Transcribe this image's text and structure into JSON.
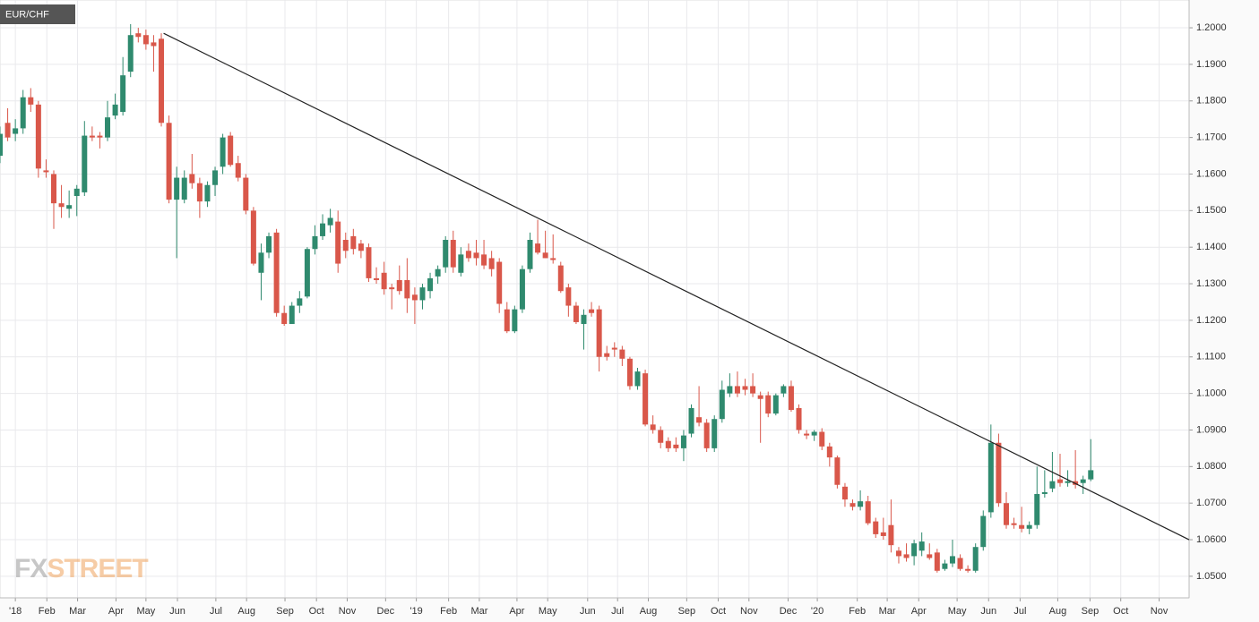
{
  "chart_data": {
    "type": "candlestick",
    "title": "EUR/CHF",
    "watermark": [
      "FX",
      "STREET"
    ],
    "up_color": "#2f8a6e",
    "down_color": "#d9574a",
    "x": [
      -2,
      -1,
      0,
      1,
      2,
      3,
      4,
      5,
      6,
      7,
      8,
      9,
      10,
      11,
      12,
      13,
      14,
      15,
      16,
      17,
      18,
      19,
      20,
      21,
      22,
      23,
      24,
      25,
      26,
      27,
      28,
      29,
      30,
      31,
      32,
      33,
      34,
      35,
      36,
      37,
      38,
      39,
      40,
      41,
      42,
      43,
      44,
      45,
      46,
      47,
      48,
      49,
      50,
      51,
      52,
      53,
      54,
      55,
      56,
      57,
      58,
      59,
      60,
      61,
      62,
      63,
      64,
      65,
      66,
      67,
      68,
      69,
      70,
      71,
      72,
      73,
      74,
      75,
      76,
      77,
      78,
      79,
      80,
      81,
      82,
      83,
      84,
      85,
      86,
      87,
      88,
      89,
      90,
      91,
      92,
      93,
      94,
      95,
      96,
      97,
      98,
      99,
      100,
      101,
      102,
      103,
      104,
      105,
      106,
      107,
      108,
      109,
      110,
      111,
      112,
      113,
      114,
      115,
      116,
      117,
      118,
      119,
      120,
      121,
      122,
      123,
      124,
      125,
      126,
      127,
      128,
      129,
      130,
      131,
      132,
      133,
      134,
      135,
      136,
      137,
      138,
      139,
      140
    ],
    "open": [
      1.165,
      1.174,
      1.171,
      1.1725,
      1.181,
      1.179,
      1.161,
      1.16,
      1.152,
      1.1505,
      1.154,
      1.155,
      1.1705,
      1.1705,
      1.17,
      1.176,
      1.177,
      1.188,
      1.1985,
      1.198,
      1.196,
      1.197,
      1.174,
      1.153,
      1.153,
      1.16,
      1.1575,
      1.1525,
      1.157,
      1.162,
      1.1705,
      1.163,
      1.159,
      1.15,
      1.133,
      1.1385,
      1.144,
      1.122,
      1.119,
      1.124,
      1.1265,
      1.1395,
      1.143,
      1.146,
      1.147,
      1.142,
      1.143,
      1.141,
      1.14,
      1.1315,
      1.133,
      1.129,
      1.131,
      1.131,
      1.127,
      1.1255,
      1.128,
      1.132,
      1.1345,
      1.142,
      1.133,
      1.139,
      1.1385,
      1.138,
      1.137,
      1.136,
      1.123,
      1.117,
      1.123,
      1.134,
      1.141,
      1.1385,
      1.137,
      1.135,
      1.129,
      1.124,
      1.119,
      1.123,
      1.123,
      1.111,
      1.1125,
      1.112,
      1.1095,
      1.102,
      1.1055,
      1.0915,
      1.09,
      1.087,
      1.086,
      1.085,
      1.089,
      1.0935,
      1.092,
      1.085,
      1.093,
      1.1,
      1.102,
      1.102,
      1.102,
      1.0995,
      1.0995,
      1.0945,
      1.1,
      1.102,
      1.096,
      1.089,
      1.0885,
      1.0895,
      1.0855,
      1.0825,
      1.0745,
      1.07,
      1.069,
      1.0705,
      1.065,
      1.062,
      1.064,
      1.057,
      1.056,
      1.0555,
      1.057,
      1.056,
      1.0565,
      1.052,
      1.0535,
      1.055,
      1.052,
      1.0515,
      1.058,
      1.0675,
      1.0865,
      1.07,
      1.0645,
      1.064,
      1.063,
      1.064,
      1.0725,
      1.074,
      1.0765,
      1.0755,
      1.076,
      1.0755,
      1.0765
    ],
    "high": [
      1.173,
      1.178,
      1.175,
      1.183,
      1.1835,
      1.18,
      1.164,
      1.161,
      1.157,
      1.1555,
      1.157,
      1.1745,
      1.173,
      1.1715,
      1.18,
      1.182,
      1.192,
      1.201,
      1.2,
      1.1995,
      1.198,
      1.1985,
      1.176,
      1.162,
      1.161,
      1.1655,
      1.159,
      1.158,
      1.162,
      1.171,
      1.1715,
      1.165,
      1.16,
      1.151,
      1.141,
      1.144,
      1.145,
      1.124,
      1.125,
      1.128,
      1.14,
      1.146,
      1.149,
      1.1505,
      1.15,
      1.144,
      1.145,
      1.142,
      1.141,
      1.1345,
      1.136,
      1.13,
      1.135,
      1.137,
      1.129,
      1.13,
      1.133,
      1.135,
      1.143,
      1.1445,
      1.14,
      1.141,
      1.142,
      1.142,
      1.139,
      1.137,
      1.125,
      1.124,
      1.135,
      1.144,
      1.1475,
      1.1445,
      1.1435,
      1.136,
      1.13,
      1.125,
      1.123,
      1.125,
      1.124,
      1.113,
      1.114,
      1.113,
      1.11,
      1.107,
      1.1065,
      1.094,
      1.091,
      1.088,
      1.088,
      1.09,
      1.097,
      1.102,
      1.093,
      1.094,
      1.1035,
      1.1055,
      1.106,
      1.104,
      1.1055,
      1.1005,
      1.1005,
      1.1,
      1.1025,
      1.1035,
      1.097,
      1.09,
      1.09,
      1.0905,
      1.0865,
      1.083,
      1.0755,
      1.071,
      1.0735,
      1.072,
      1.066,
      1.066,
      1.071,
      1.058,
      1.059,
      1.06,
      1.062,
      1.059,
      1.0575,
      1.0545,
      1.06,
      1.056,
      1.053,
      1.059,
      1.068,
      1.0915,
      1.089,
      1.073,
      1.066,
      1.069,
      1.065,
      1.08,
      1.079,
      1.084,
      1.0835,
      1.079,
      1.0845,
      1.0775,
      1.0875
    ],
    "low": [
      1.163,
      1.169,
      1.169,
      1.171,
      1.177,
      1.159,
      1.159,
      1.145,
      1.148,
      1.148,
      1.1485,
      1.154,
      1.169,
      1.167,
      1.169,
      1.175,
      1.176,
      1.1865,
      1.196,
      1.194,
      1.188,
      1.173,
      1.152,
      1.137,
      1.152,
      1.156,
      1.148,
      1.151,
      1.154,
      1.16,
      1.162,
      1.158,
      1.149,
      1.135,
      1.1255,
      1.137,
      1.121,
      1.1185,
      1.119,
      1.122,
      1.126,
      1.138,
      1.142,
      1.144,
      1.133,
      1.137,
      1.138,
      1.137,
      1.1305,
      1.13,
      1.127,
      1.123,
      1.127,
      1.122,
      1.119,
      1.123,
      1.126,
      1.13,
      1.133,
      1.133,
      1.132,
      1.136,
      1.135,
      1.134,
      1.132,
      1.122,
      1.1165,
      1.1165,
      1.122,
      1.133,
      1.138,
      1.137,
      1.1355,
      1.1275,
      1.121,
      1.119,
      1.112,
      1.121,
      1.106,
      1.109,
      1.11,
      1.1075,
      1.101,
      1.101,
      1.091,
      1.089,
      1.085,
      1.084,
      1.084,
      1.0815,
      1.088,
      1.091,
      1.084,
      1.084,
      1.092,
      1.099,
      1.099,
      1.0995,
      1.099,
      1.0865,
      1.0935,
      1.094,
      1.099,
      1.095,
      1.089,
      1.0875,
      1.087,
      1.0845,
      1.08,
      1.074,
      1.069,
      1.068,
      1.068,
      1.064,
      1.0605,
      1.06,
      1.0565,
      1.0535,
      1.054,
      1.053,
      1.0555,
      1.0545,
      1.051,
      1.0515,
      1.0525,
      1.0515,
      1.051,
      1.051,
      1.057,
      1.066,
      1.069,
      1.063,
      1.063,
      1.062,
      1.0615,
      1.063,
      1.0715,
      1.073,
      1.0745,
      1.0745,
      1.074,
      1.0725,
      1.076
    ],
    "close": [
      1.171,
      1.17,
      1.1725,
      1.181,
      1.179,
      1.1615,
      1.1605,
      1.152,
      1.151,
      1.1515,
      1.156,
      1.1705,
      1.17,
      1.17,
      1.1755,
      1.179,
      1.187,
      1.198,
      1.1975,
      1.1955,
      1.195,
      1.174,
      1.153,
      1.159,
      1.159,
      1.1575,
      1.1525,
      1.157,
      1.161,
      1.17,
      1.1625,
      1.159,
      1.15,
      1.1355,
      1.1385,
      1.143,
      1.122,
      1.119,
      1.124,
      1.126,
      1.1395,
      1.143,
      1.1465,
      1.148,
      1.1355,
      1.139,
      1.1395,
      1.139,
      1.1315,
      1.131,
      1.1285,
      1.1285,
      1.128,
      1.126,
      1.1255,
      1.129,
      1.1315,
      1.134,
      1.142,
      1.1345,
      1.138,
      1.137,
      1.137,
      1.135,
      1.134,
      1.1245,
      1.117,
      1.123,
      1.134,
      1.142,
      1.1385,
      1.137,
      1.1365,
      1.128,
      1.124,
      1.1195,
      1.1215,
      1.122,
      1.11,
      1.11,
      1.112,
      1.1095,
      1.102,
      1.106,
      1.0915,
      1.09,
      1.0865,
      1.085,
      1.085,
      1.0885,
      1.096,
      1.092,
      1.085,
      1.093,
      1.101,
      1.102,
      1.1,
      1.101,
      1.1,
      1.0985,
      1.0945,
      1.0995,
      1.102,
      1.0955,
      1.09,
      1.0885,
      1.0895,
      1.0855,
      1.0825,
      1.075,
      1.071,
      1.069,
      1.0705,
      1.0645,
      1.0615,
      1.061,
      1.0585,
      1.0555,
      1.055,
      1.059,
      1.0595,
      1.055,
      1.0515,
      1.0535,
      1.0555,
      1.052,
      1.0515,
      1.058,
      1.0665,
      1.0865,
      1.07,
      1.064,
      1.064,
      1.063,
      1.064,
      1.0725,
      1.073,
      1.076,
      1.0755,
      1.076,
      1.075,
      1.0765,
      1.079
    ],
    "trendline": {
      "x": [
        19.3,
        152.8
      ],
      "y": [
        1.1985,
        1.06
      ],
      "color": "#222222"
    },
    "xlim": [
      -2.0,
      152.8
    ],
    "xticks": [
      {
        "value": 0,
        "label": "'18"
      },
      {
        "value": 4.1,
        "label": "Feb"
      },
      {
        "value": 8.1,
        "label": "Mar"
      },
      {
        "value": 13.1,
        "label": "Apr"
      },
      {
        "value": 17.0,
        "label": "May"
      },
      {
        "value": 21.1,
        "label": "Jun"
      },
      {
        "value": 26.1,
        "label": "Jul"
      },
      {
        "value": 30.1,
        "label": "Aug"
      },
      {
        "value": 35.1,
        "label": "Sep"
      },
      {
        "value": 39.2,
        "label": "Oct"
      },
      {
        "value": 43.2,
        "label": "Nov"
      },
      {
        "value": 48.2,
        "label": "Dec"
      },
      {
        "value": 52.2,
        "label": "'19"
      },
      {
        "value": 56.4,
        "label": "Feb"
      },
      {
        "value": 60.4,
        "label": "Mar"
      },
      {
        "value": 65.3,
        "label": "Apr"
      },
      {
        "value": 69.3,
        "label": "May"
      },
      {
        "value": 74.5,
        "label": "Jun"
      },
      {
        "value": 78.4,
        "label": "Jul"
      },
      {
        "value": 82.4,
        "label": "Aug"
      },
      {
        "value": 87.4,
        "label": "Sep"
      },
      {
        "value": 91.5,
        "label": "Oct"
      },
      {
        "value": 95.5,
        "label": "Nov"
      },
      {
        "value": 100.6,
        "label": "Dec"
      },
      {
        "value": 104.4,
        "label": "'20"
      },
      {
        "value": 109.6,
        "label": "Feb"
      },
      {
        "value": 113.5,
        "label": "Mar"
      },
      {
        "value": 117.6,
        "label": "Apr"
      },
      {
        "value": 122.6,
        "label": "May"
      },
      {
        "value": 126.7,
        "label": "Jun"
      },
      {
        "value": 130.8,
        "label": "Jul"
      },
      {
        "value": 135.7,
        "label": "Aug"
      },
      {
        "value": 139.9,
        "label": "Sep"
      },
      {
        "value": 143.9,
        "label": "Oct"
      },
      {
        "value": 148.9,
        "label": "Nov"
      }
    ],
    "ylim": [
      1.0441,
      1.2076
    ],
    "yticks": [
      {
        "value": 1.05,
        "label": "1.0500"
      },
      {
        "value": 1.06,
        "label": "1.0600"
      },
      {
        "value": 1.07,
        "label": "1.0700"
      },
      {
        "value": 1.08,
        "label": "1.0800"
      },
      {
        "value": 1.09,
        "label": "1.0900"
      },
      {
        "value": 1.1,
        "label": "1.1000"
      },
      {
        "value": 1.11,
        "label": "1.1100"
      },
      {
        "value": 1.12,
        "label": "1.1200"
      },
      {
        "value": 1.13,
        "label": "1.1300"
      },
      {
        "value": 1.14,
        "label": "1.1400"
      },
      {
        "value": 1.15,
        "label": "1.1500"
      },
      {
        "value": 1.16,
        "label": "1.1600"
      },
      {
        "value": 1.17,
        "label": "1.1700"
      },
      {
        "value": 1.18,
        "label": "1.1800"
      },
      {
        "value": 1.19,
        "label": "1.1900"
      },
      {
        "value": 1.2,
        "label": "1.2000"
      }
    ],
    "grid": true
  }
}
